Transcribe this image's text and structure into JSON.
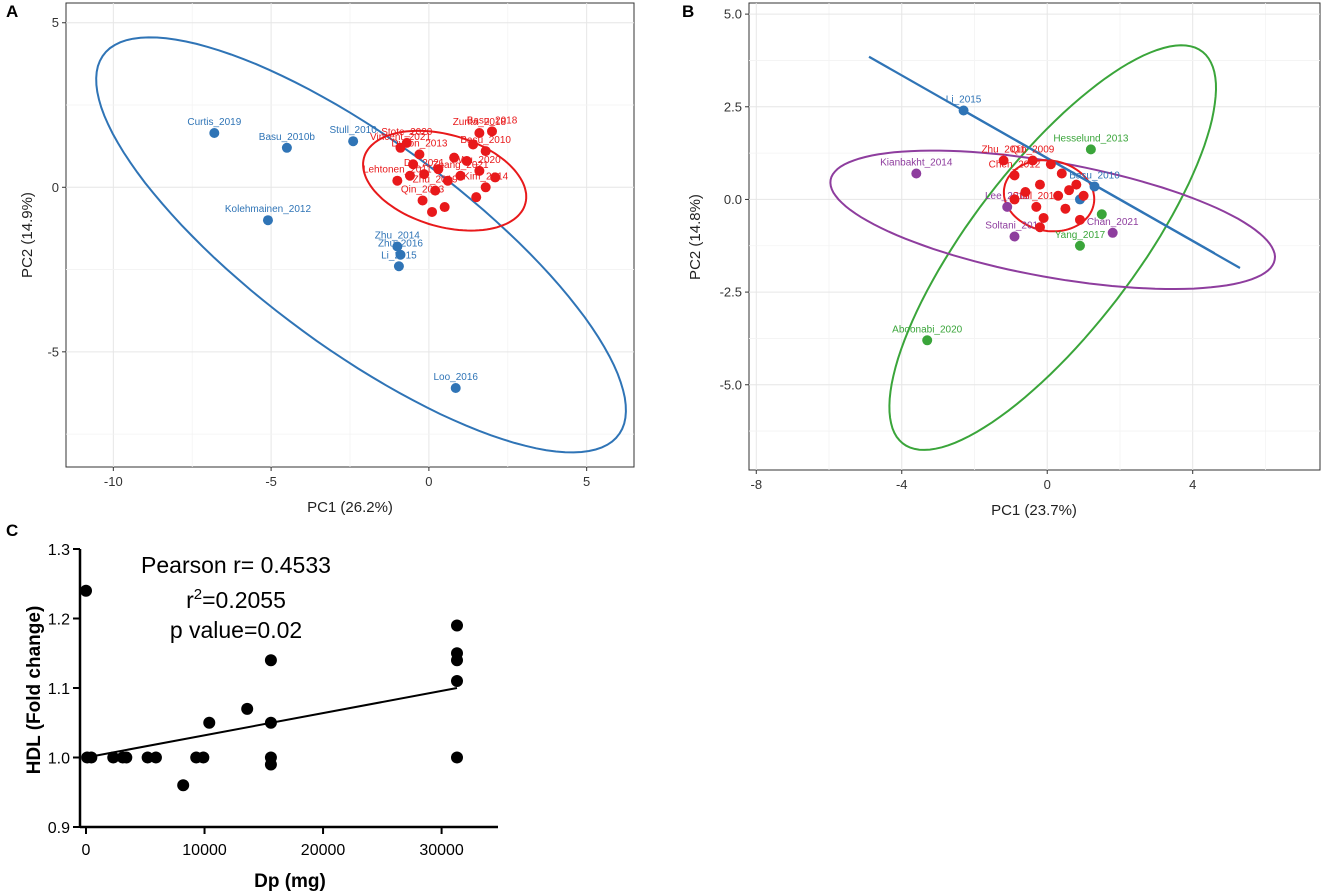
{
  "panels": {
    "A": {
      "letter": "A"
    },
    "B": {
      "letter": "B"
    },
    "C": {
      "letter": "C"
    }
  },
  "chart_data": [
    {
      "id": "A",
      "type": "scatter",
      "xlabel": "PC1 (26.2%)",
      "ylabel": "PC2 (14.9%)",
      "xlim": [
        -11.5,
        6.5
      ],
      "ylim": [
        -8.5,
        5.6
      ],
      "xticks": [
        -10,
        -5,
        0,
        5
      ],
      "yticks": [
        -5,
        0,
        5
      ],
      "xtick_labels": [
        "-10",
        "-5",
        "0",
        "5"
      ],
      "ytick_labels": [
        "-5",
        "0",
        "5"
      ],
      "grid": true,
      "series": [
        {
          "name": "blue group",
          "color": "#2f74b6",
          "points": [
            {
              "x": -6.8,
              "y": 1.65,
              "label": "Curtis_2019"
            },
            {
              "x": -4.5,
              "y": 1.2,
              "label": "Basu_2010b"
            },
            {
              "x": -2.4,
              "y": 1.4,
              "label": "Stull_2010"
            },
            {
              "x": -5.1,
              "y": -1.0,
              "label": "Kolehmainen_2012"
            },
            {
              "x": -1.0,
              "y": -1.8,
              "label": "Zhu_2014"
            },
            {
              "x": -0.9,
              "y": -2.05,
              "label": "Zhu_2016"
            },
            {
              "x": -0.95,
              "y": -2.4,
              "label": "Li_2015"
            },
            {
              "x": 0.85,
              "y": -6.1,
              "label": "Loo_2016"
            }
          ],
          "ellipse": {
            "cx": -2.15,
            "cy": -1.75,
            "rx": 10.0,
            "ry": 3.2,
            "angle_deg": -35
          }
        },
        {
          "name": "red group",
          "color": "#e8191b",
          "points": [
            {
              "x": 1.6,
              "y": 1.65,
              "label": "Zurita_2018"
            },
            {
              "x": 2.0,
              "y": 1.7,
              "label": "Basu_2018"
            },
            {
              "x": -0.7,
              "y": 1.35,
              "label": "Stote_2020"
            },
            {
              "x": -0.9,
              "y": 1.2,
              "label": "Vincent_2021"
            },
            {
              "x": 1.8,
              "y": 1.1,
              "label": "Basu_2010"
            },
            {
              "x": -0.3,
              "y": 1.0,
              "label": "Dyson_2013"
            },
            {
              "x": 1.2,
              "y": 0.8,
              "label": ""
            },
            {
              "x": 0.8,
              "y": 0.9,
              "label": ""
            },
            {
              "x": -0.5,
              "y": 0.7,
              "label": ""
            },
            {
              "x": 0.3,
              "y": 0.55,
              "label": ""
            },
            {
              "x": 1.6,
              "y": 0.5,
              "label": "Wu_2020"
            },
            {
              "x": -0.15,
              "y": 0.4,
              "label": "Do_2021"
            },
            {
              "x": 1.0,
              "y": 0.35,
              "label": "Zhang_2021"
            },
            {
              "x": -1.0,
              "y": 0.2,
              "label": "Lehtonen_2011"
            },
            {
              "x": 0.6,
              "y": 0.2,
              "label": ""
            },
            {
              "x": 1.8,
              "y": 0.0,
              "label": "Kim_2014"
            },
            {
              "x": 0.2,
              "y": -0.1,
              "label": "Zhu_2019"
            },
            {
              "x": -0.2,
              "y": -0.4,
              "label": "Qin_2013"
            },
            {
              "x": 0.5,
              "y": -0.6,
              "label": ""
            },
            {
              "x": 1.5,
              "y": -0.3,
              "label": ""
            },
            {
              "x": 0.1,
              "y": -0.75,
              "label": ""
            },
            {
              "x": 2.1,
              "y": 0.3,
              "label": ""
            },
            {
              "x": 1.4,
              "y": 1.3,
              "label": ""
            },
            {
              "x": -0.6,
              "y": 0.35,
              "label": ""
            }
          ],
          "ellipse": {
            "cx": 0.5,
            "cy": 0.2,
            "rx": 2.65,
            "ry": 1.4,
            "angle_deg": -15
          }
        }
      ]
    },
    {
      "id": "B",
      "type": "scatter",
      "xlabel": "PC1 (23.7%)",
      "ylabel": "PC2 (14.8%)",
      "xlim": [
        -8.2,
        7.5
      ],
      "ylim": [
        -7.3,
        5.3
      ],
      "xticks": [
        -8,
        -4,
        0,
        4
      ],
      "yticks": [
        -5,
        -2.5,
        0,
        2.5,
        5
      ],
      "xtick_labels": [
        "-8",
        "-4",
        "0",
        "4"
      ],
      "ytick_labels": [
        "-5.0",
        "-2.5",
        "0.0",
        "2.5",
        "5.0"
      ],
      "grid": true,
      "series": [
        {
          "name": "blue group",
          "color": "#2f74b6",
          "points": [
            {
              "x": -2.3,
              "y": 2.4,
              "label": "Li_2015"
            },
            {
              "x": 1.3,
              "y": 0.35,
              "label": "Basu_2010"
            },
            {
              "x": 0.9,
              "y": 0.0,
              "label": ""
            }
          ],
          "lines": [
            {
              "x1": -4.9,
              "y1": 3.85,
              "x2": 5.3,
              "y2": -1.85
            },
            {
              "x1": -2.3,
              "y1": 2.4,
              "x2": 4.6,
              "y2": -1.45
            }
          ]
        },
        {
          "name": "green group",
          "color": "#3aa53a",
          "points": [
            {
              "x": 1.2,
              "y": 1.35,
              "label": "Hesselund_2013"
            },
            {
              "x": 1.5,
              "y": -0.4,
              "label": ""
            },
            {
              "x": 0.9,
              "y": -1.25,
              "label": "Yang_2017"
            },
            {
              "x": -3.3,
              "y": -3.8,
              "label": "Aboonabi_2020"
            }
          ],
          "ellipse": {
            "cx": 0.15,
            "cy": -1.3,
            "rx": 6.7,
            "ry": 2.25,
            "angle_deg": 52
          }
        },
        {
          "name": "purple group",
          "color": "#8e3d9e",
          "points": [
            {
              "x": -3.6,
              "y": 0.7,
              "label": "Kianbakht_2014"
            },
            {
              "x": -1.1,
              "y": -0.2,
              "label": "Lee_2018"
            },
            {
              "x": -0.9,
              "y": -1.0,
              "label": "Soltani_2014"
            },
            {
              "x": 1.8,
              "y": -0.9,
              "label": "Chan_2021"
            }
          ],
          "ellipse": {
            "cx": 0.15,
            "cy": -0.55,
            "rx": 6.2,
            "ry": 1.55,
            "angle_deg": -10
          }
        },
        {
          "name": "red group",
          "color": "#e8191b",
          "points": [
            {
              "x": -1.2,
              "y": 1.05,
              "label": "Zhu_2011"
            },
            {
              "x": -0.4,
              "y": 1.05,
              "label": "Qin_2009"
            },
            {
              "x": 0.1,
              "y": 0.95,
              "label": ""
            },
            {
              "x": -0.9,
              "y": 0.65,
              "label": "Chen_2012"
            },
            {
              "x": 0.4,
              "y": 0.7,
              "label": ""
            },
            {
              "x": -0.2,
              "y": 0.4,
              "label": ""
            },
            {
              "x": 0.8,
              "y": 0.4,
              "label": ""
            },
            {
              "x": -0.6,
              "y": 0.2,
              "label": ""
            },
            {
              "x": 0.3,
              "y": 0.1,
              "label": ""
            },
            {
              "x": 1.0,
              "y": 0.1,
              "label": ""
            },
            {
              "x": -0.3,
              "y": -0.2,
              "label": "Stull_2010"
            },
            {
              "x": 0.5,
              "y": -0.25,
              "label": ""
            },
            {
              "x": -0.1,
              "y": -0.5,
              "label": ""
            },
            {
              "x": 0.9,
              "y": -0.55,
              "label": ""
            },
            {
              "x": -0.2,
              "y": -0.75,
              "label": ""
            },
            {
              "x": 0.6,
              "y": 0.25,
              "label": ""
            },
            {
              "x": -0.9,
              "y": 0.0,
              "label": ""
            }
          ],
          "ellipse": {
            "cx": 0.05,
            "cy": 0.1,
            "rx": 1.25,
            "ry": 0.95,
            "angle_deg": -10
          }
        }
      ]
    },
    {
      "id": "C",
      "type": "scatter",
      "xlabel": "Dp (mg)",
      "ylabel": "HDL (Fold change)",
      "xlim": [
        0,
        35000
      ],
      "ylim": [
        0.9,
        1.3
      ],
      "xticks": [
        0,
        10000,
        20000,
        30000
      ],
      "yticks": [
        0.9,
        1.0,
        1.1,
        1.2,
        1.3
      ],
      "xtick_labels": [
        "0",
        "10000",
        "20000",
        "30000"
      ],
      "ytick_labels": [
        "0.9",
        "1.0",
        "1.1",
        "1.2",
        "1.3"
      ],
      "grid": false,
      "annotations": {
        "pearson": "Pearson r= 0.4533",
        "r2_base": "r",
        "r2_sup": "2",
        "r2_value": "=0.2055",
        "pvalue": "p value=0.02"
      },
      "regression": {
        "x1": 0,
        "y1": 1.0,
        "x2": 31300,
        "y2": 1.1
      },
      "series": [
        {
          "name": "data",
          "color": "#000000",
          "points": [
            {
              "x": 0,
              "y": 1.24
            },
            {
              "x": 100,
              "y": 1.0
            },
            {
              "x": 450,
              "y": 1.0
            },
            {
              "x": 2300,
              "y": 1.0
            },
            {
              "x": 3100,
              "y": 1.0
            },
            {
              "x": 3400,
              "y": 1.0
            },
            {
              "x": 5200,
              "y": 1.0
            },
            {
              "x": 5900,
              "y": 1.0
            },
            {
              "x": 8200,
              "y": 0.96
            },
            {
              "x": 9300,
              "y": 1.0
            },
            {
              "x": 9900,
              "y": 1.0
            },
            {
              "x": 10400,
              "y": 1.05
            },
            {
              "x": 13600,
              "y": 1.07
            },
            {
              "x": 15600,
              "y": 1.14
            },
            {
              "x": 15600,
              "y": 1.05
            },
            {
              "x": 15600,
              "y": 1.0
            },
            {
              "x": 15600,
              "y": 0.99
            },
            {
              "x": 31300,
              "y": 1.19
            },
            {
              "x": 31300,
              "y": 1.15
            },
            {
              "x": 31300,
              "y": 1.14
            },
            {
              "x": 31300,
              "y": 1.11
            },
            {
              "x": 31300,
              "y": 1.0
            }
          ]
        }
      ]
    }
  ]
}
